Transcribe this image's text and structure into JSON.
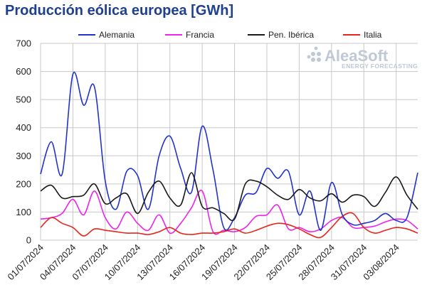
{
  "chart_data": {
    "type": "line",
    "title": "Producción eólica europea [GWh]",
    "ylim": [
      0,
      700
    ],
    "yticks": [
      0,
      100,
      200,
      300,
      400,
      500,
      600,
      700
    ],
    "grid": true,
    "legend_position": "top",
    "x": [
      "01/07/2024",
      "02/07/2024",
      "03/07/2024",
      "04/07/2024",
      "05/07/2024",
      "06/07/2024",
      "07/07/2024",
      "08/07/2024",
      "09/07/2024",
      "10/07/2024",
      "11/07/2024",
      "12/07/2024",
      "13/07/2024",
      "14/07/2024",
      "15/07/2024",
      "16/07/2024",
      "17/07/2024",
      "18/07/2024",
      "19/07/2024",
      "20/07/2024",
      "21/07/2024",
      "22/07/2024",
      "23/07/2024",
      "24/07/2024",
      "25/07/2024",
      "26/07/2024",
      "27/07/2024",
      "28/07/2024",
      "29/07/2024",
      "30/07/2024",
      "31/07/2024",
      "01/08/2024",
      "02/08/2024",
      "03/08/2024",
      "04/08/2024",
      "05/08/2024"
    ],
    "xtick_labels": [
      "01/07/2024",
      "04/07/2024",
      "07/07/2024",
      "10/07/2024",
      "13/07/2024",
      "16/07/2024",
      "19/07/2024",
      "22/07/2024",
      "25/07/2024",
      "28/07/2024",
      "31/07/2024",
      "03/08/2024"
    ],
    "series": [
      {
        "name": "Alemania",
        "color": "#2233cc",
        "values": [
          235,
          350,
          235,
          590,
          480,
          545,
          210,
          110,
          245,
          230,
          110,
          300,
          370,
          255,
          170,
          405,
          250,
          45,
          80,
          160,
          170,
          255,
          220,
          245,
          90,
          175,
          35,
          205,
          90,
          55,
          60,
          70,
          95,
          70,
          80,
          240
        ]
      },
      {
        "name": "Francia",
        "color": "#ee22ee",
        "values": [
          75,
          80,
          95,
          145,
          90,
          175,
          80,
          40,
          100,
          60,
          35,
          90,
          25,
          60,
          115,
          175,
          30,
          35,
          30,
          45,
          85,
          90,
          125,
          40,
          45,
          30,
          40,
          70,
          80,
          45,
          45,
          50,
          65,
          75,
          70,
          40
        ]
      },
      {
        "name": "Pen. Ibérica",
        "color": "#1a1a1a",
        "values": [
          175,
          195,
          150,
          155,
          160,
          200,
          130,
          150,
          165,
          95,
          170,
          210,
          150,
          125,
          240,
          120,
          115,
          95,
          75,
          200,
          210,
          190,
          160,
          145,
          180,
          150,
          140,
          165,
          135,
          160,
          155,
          120,
          170,
          225,
          160,
          110
        ]
      },
      {
        "name": "Italia",
        "color": "#e8251a",
        "values": [
          45,
          80,
          60,
          45,
          15,
          40,
          35,
          30,
          25,
          25,
          20,
          30,
          45,
          25,
          20,
          25,
          25,
          30,
          40,
          25,
          35,
          50,
          60,
          55,
          40,
          20,
          10,
          45,
          85,
          95,
          45,
          25,
          35,
          45,
          40,
          25
        ]
      }
    ]
  },
  "logo": {
    "name": "AleaSoft",
    "tagline": "ENERGY FORECASTING"
  }
}
